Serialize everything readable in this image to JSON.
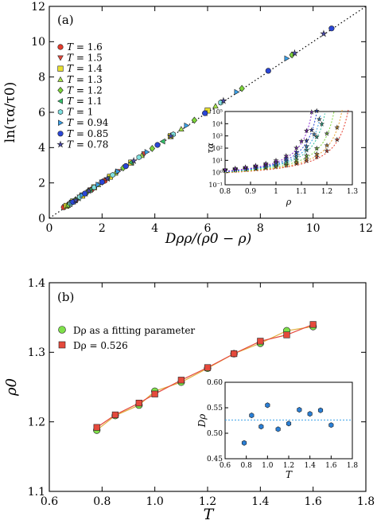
{
  "chart_data": [
    {
      "panel_label": "(a)",
      "type": "scatter",
      "xlabel": "Dρρ/(ρ0 − ρ)",
      "ylabel": "ln(τα/τ0)",
      "xlim": [
        0,
        12
      ],
      "ylim": [
        0,
        12
      ],
      "xticks": [
        "0",
        "2",
        "4",
        "6",
        "8",
        "10",
        "12"
      ],
      "yticks": [
        "0",
        "2",
        "4",
        "6",
        "8",
        "10",
        "12"
      ],
      "reference_line": {
        "style": "dotted",
        "color": "#000000",
        "from": [
          0,
          0
        ],
        "to": [
          12,
          12
        ]
      },
      "legend_position": "top-left",
      "series": [
        {
          "name": "T = 1.6",
          "marker": "circle",
          "color": "#e53b2c",
          "points": [
            [
              0.55,
              0.62
            ],
            [
              0.75,
              0.8
            ],
            [
              1.0,
              1.02
            ],
            [
              1.25,
              1.3
            ],
            [
              1.6,
              1.62
            ],
            [
              2.1,
              2.12
            ],
            [
              2.9,
              2.95
            ]
          ]
        },
        {
          "name": "T = 1.5",
          "marker": "triangle-down",
          "color": "#e5493c",
          "points": [
            [
              0.6,
              0.66
            ],
            [
              0.85,
              0.9
            ],
            [
              1.15,
              1.2
            ],
            [
              1.55,
              1.6
            ],
            [
              2.0,
              2.05
            ],
            [
              2.6,
              2.65
            ],
            [
              3.6,
              3.65
            ]
          ]
        },
        {
          "name": "T = 1.4",
          "marker": "square",
          "color": "#e8e030",
          "points": [
            [
              0.65,
              0.7
            ],
            [
              0.9,
              0.95
            ],
            [
              1.25,
              1.28
            ],
            [
              1.7,
              1.75
            ],
            [
              2.3,
              2.35
            ],
            [
              3.1,
              3.15
            ],
            [
              4.6,
              4.65
            ],
            [
              6.0,
              6.1
            ]
          ]
        },
        {
          "name": "T = 1.3",
          "marker": "triangle-up",
          "color": "#a6e34a",
          "points": [
            [
              0.7,
              0.72
            ],
            [
              0.95,
              1.0
            ],
            [
              1.35,
              1.38
            ],
            [
              1.85,
              1.9
            ],
            [
              2.5,
              2.55
            ],
            [
              3.5,
              3.55
            ],
            [
              5.0,
              5.05
            ],
            [
              6.3,
              6.35
            ]
          ]
        },
        {
          "name": "T = 1.2",
          "marker": "diamond",
          "color": "#7dd63a",
          "points": [
            [
              0.72,
              0.75
            ],
            [
              1.0,
              1.05
            ],
            [
              1.45,
              1.5
            ],
            [
              2.0,
              2.05
            ],
            [
              2.8,
              2.85
            ],
            [
              3.9,
              3.95
            ],
            [
              5.5,
              5.55
            ],
            [
              7.3,
              7.35
            ],
            [
              9.2,
              9.25
            ]
          ]
        },
        {
          "name": "T = 1.1",
          "marker": "triangle-left",
          "color": "#33c06a",
          "points": [
            [
              0.78,
              0.8
            ],
            [
              1.1,
              1.13
            ],
            [
              1.55,
              1.6
            ],
            [
              2.2,
              2.25
            ],
            [
              3.1,
              3.15
            ],
            [
              4.3,
              4.35
            ],
            [
              5.9,
              5.95
            ]
          ]
        },
        {
          "name": "T = 1",
          "marker": "hexagon",
          "color": "#7fe0e0",
          "points": [
            [
              0.8,
              0.82
            ],
            [
              1.15,
              1.2
            ],
            [
              1.7,
              1.75
            ],
            [
              2.4,
              2.45
            ],
            [
              3.4,
              3.45
            ],
            [
              4.7,
              4.75
            ],
            [
              6.5,
              6.55
            ]
          ]
        },
        {
          "name": "T = 0.94",
          "marker": "triangle-right",
          "color": "#3aa0e8",
          "points": [
            [
              0.85,
              0.88
            ],
            [
              1.25,
              1.3
            ],
            [
              1.85,
              1.9
            ],
            [
              2.6,
              2.65
            ],
            [
              3.7,
              3.75
            ],
            [
              5.2,
              5.25
            ],
            [
              7.1,
              7.15
            ],
            [
              9.0,
              9.05
            ]
          ]
        },
        {
          "name": "T = 0.85",
          "marker": "circle",
          "color": "#2a46d6",
          "points": [
            [
              0.9,
              0.92
            ],
            [
              1.35,
              1.4
            ],
            [
              2.0,
              2.05
            ],
            [
              2.9,
              2.95
            ],
            [
              4.1,
              4.15
            ],
            [
              5.9,
              5.95
            ],
            [
              8.3,
              8.35
            ],
            [
              10.7,
              10.75
            ]
          ]
        },
        {
          "name": "T = 0.78",
          "marker": "star",
          "color": "#4a4ab0",
          "points": [
            [
              1.0,
              1.02
            ],
            [
              1.5,
              1.55
            ],
            [
              2.2,
              2.25
            ],
            [
              3.2,
              3.25
            ],
            [
              4.6,
              4.65
            ],
            [
              6.6,
              6.65
            ],
            [
              9.3,
              9.35
            ],
            [
              10.4,
              10.45
            ]
          ]
        }
      ],
      "inset": {
        "type": "scatter",
        "xlabel": "ρ",
        "ylabel": "τα",
        "xlim": [
          0.8,
          1.3
        ],
        "ylim_log10": [
          -1,
          5
        ],
        "xticks": [
          "0.8",
          "0.9",
          "1",
          "1.1",
          "1.2",
          "1.3"
        ],
        "yticks": [
          "10⁻¹",
          "10⁰",
          "10¹",
          "10²",
          "10³",
          "10⁴",
          "10⁵"
        ],
        "curves": [
          {
            "name": "T = 1.6",
            "color": "#e53b2c",
            "rho0": 1.337,
            "points": [
              0.8,
              0.84,
              0.88,
              0.92,
              0.96,
              1.0,
              1.04,
              1.08,
              1.12,
              1.16,
              1.2,
              1.24
            ]
          },
          {
            "name": "T = 1.4",
            "color": "#e8a030",
            "rho0": 1.312,
            "points": [
              0.8,
              0.84,
              0.88,
              0.92,
              0.96,
              1.0,
              1.04,
              1.08,
              1.12,
              1.16,
              1.2,
              1.24
            ]
          },
          {
            "name": "T = 1.2",
            "color": "#7dd63a",
            "rho0": 1.28,
            "points": [
              0.8,
              0.84,
              0.88,
              0.92,
              0.96,
              1.0,
              1.04,
              1.08,
              1.12,
              1.16,
              1.2
            ]
          },
          {
            "name": "T = 1",
            "color": "#33c0a0",
            "rho0": 1.244,
            "points": [
              0.8,
              0.84,
              0.88,
              0.92,
              0.96,
              1.0,
              1.04,
              1.08,
              1.12,
              1.16,
              1.18
            ]
          },
          {
            "name": "T = 0.94",
            "color": "#3aa0e8",
            "rho0": 1.228,
            "points": [
              0.8,
              0.84,
              0.88,
              0.92,
              0.96,
              1.0,
              1.04,
              1.08,
              1.12,
              1.15,
              1.17
            ]
          },
          {
            "name": "T = 0.85",
            "color": "#2a46d6",
            "rho0": 1.21,
            "points": [
              0.8,
              0.84,
              0.88,
              0.92,
              0.96,
              1.0,
              1.04,
              1.08,
              1.12,
              1.14,
              1.16
            ]
          },
          {
            "name": "T = 0.78",
            "color": "#8a2ad6",
            "rho0": 1.19,
            "points": [
              0.8,
              0.84,
              0.88,
              0.92,
              0.96,
              1.0,
              1.04,
              1.08,
              1.1,
              1.12,
              1.14
            ]
          }
        ]
      }
    },
    {
      "panel_label": "(b)",
      "type": "scatter",
      "xlabel": "T",
      "ylabel": "ρ0",
      "xlim": [
        0.6,
        1.8
      ],
      "ylim": [
        1.1,
        1.4
      ],
      "xticks": [
        "0.6",
        "0.8",
        "1.0",
        "1.2",
        "1.4",
        "1.6",
        "1.8"
      ],
      "yticks": [
        "1.1",
        "1.2",
        "1.3",
        "1.4"
      ],
      "legend_position": "top-left",
      "series": [
        {
          "name": "Dρ as a fitting parameter",
          "marker": "circle",
          "color": "#7ee04a",
          "x": [
            0.78,
            0.85,
            0.94,
            1.0,
            1.1,
            1.2,
            1.3,
            1.4,
            1.5,
            1.6
          ],
          "y": [
            1.188,
            1.209,
            1.224,
            1.244,
            1.257,
            1.277,
            1.298,
            1.313,
            1.331,
            1.337
          ]
        },
        {
          "name": "Dρ = 0.526",
          "marker": "square",
          "color": "#e5493c",
          "x": [
            0.78,
            0.85,
            0.94,
            1.0,
            1.1,
            1.2,
            1.3,
            1.4,
            1.5,
            1.6
          ],
          "y": [
            1.192,
            1.21,
            1.227,
            1.24,
            1.26,
            1.278,
            1.298,
            1.316,
            1.325,
            1.34
          ]
        }
      ],
      "inset": {
        "type": "scatter",
        "xlabel": "T",
        "ylabel": "Dρ",
        "xlim": [
          0.6,
          1.8
        ],
        "ylim": [
          0.45,
          0.6
        ],
        "xticks": [
          "0.6",
          "0.8",
          "1.0",
          "1.2",
          "1.4",
          "1.6",
          "1.8"
        ],
        "yticks": [
          "0.45",
          "0.50",
          "0.55",
          "0.60"
        ],
        "reference_value": 0.526,
        "series": [
          {
            "marker": "hexagon",
            "color": "#2a7fd6",
            "x": [
              0.78,
              0.85,
              0.94,
              1.0,
              1.1,
              1.2,
              1.3,
              1.4,
              1.5,
              1.6
            ],
            "y": [
              0.481,
              0.535,
              0.513,
              0.555,
              0.508,
              0.519,
              0.546,
              0.538,
              0.545,
              0.516
            ]
          }
        ]
      }
    }
  ]
}
